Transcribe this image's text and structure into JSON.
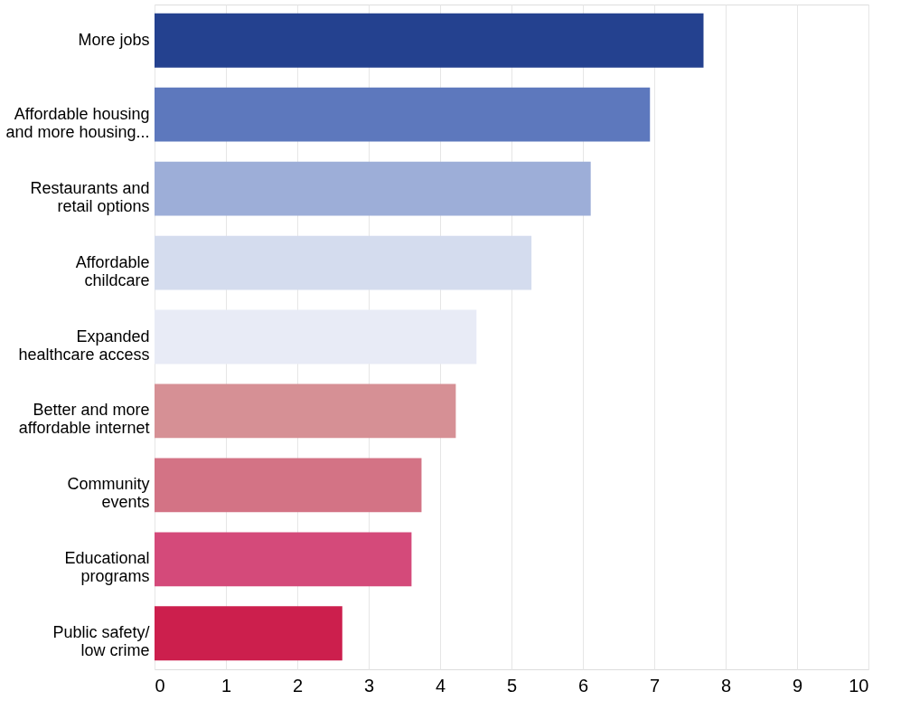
{
  "chart_data": {
    "type": "bar",
    "orientation": "horizontal",
    "categories": [
      "More jobs",
      "Affordable housing\nand more housing...",
      "Restaurants and\nretail options",
      "Affordable\nchildcare",
      "Expanded\nhealthcare access",
      "Better and more\naffordable internet",
      "Community\nevents",
      "Educational\nprograms",
      "Public safety/\nlow crime"
    ],
    "values": [
      7.69,
      6.94,
      6.11,
      5.28,
      4.51,
      4.22,
      3.74,
      3.6,
      2.63
    ],
    "colors": [
      "#24418f",
      "#5d78bd",
      "#9daed8",
      "#d4dcee",
      "#e8ebf6",
      "#d69095",
      "#d37385",
      "#d44a7a",
      "#cc1f4d"
    ],
    "xlim": [
      0,
      10
    ],
    "xticks": [
      0,
      1,
      2,
      3,
      4,
      5,
      6,
      7,
      8,
      9,
      10
    ],
    "grid": "x"
  }
}
